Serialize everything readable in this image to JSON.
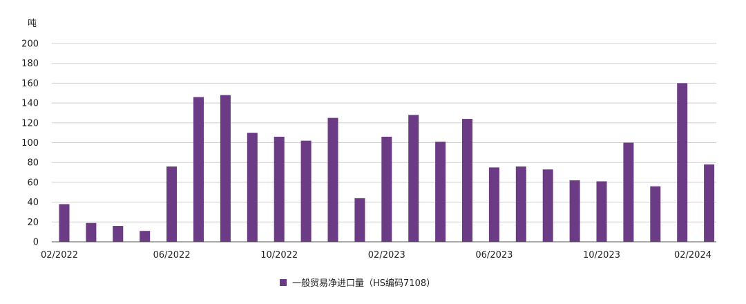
{
  "chart_data": {
    "type": "bar",
    "unit_label": "吨",
    "categories": [
      "02/2022",
      "03/2022",
      "04/2022",
      "05/2022",
      "06/2022",
      "07/2022",
      "08/2022",
      "09/2022",
      "10/2022",
      "11/2022",
      "12/2022",
      "01/2023",
      "02/2023",
      "03/2023",
      "04/2023",
      "05/2023",
      "06/2023",
      "07/2023",
      "08/2023",
      "09/2023",
      "10/2023",
      "11/2023",
      "12/2023",
      "01/2024",
      "02/2024"
    ],
    "xtick_labels": [
      "02/2022",
      "06/2022",
      "10/2022",
      "02/2023",
      "06/2023",
      "10/2023",
      "02/2024"
    ],
    "series": [
      {
        "name": "一般贸易净进口量（HS编码7108）",
        "color": "#6b3b86",
        "values": [
          38,
          19,
          16,
          11,
          76,
          146,
          148,
          110,
          106,
          102,
          125,
          44,
          106,
          128,
          101,
          124,
          75,
          76,
          73,
          62,
          61,
          100,
          56,
          160,
          78
        ]
      }
    ],
    "ylim": [
      0,
      200
    ],
    "yticks": [
      0,
      20,
      40,
      60,
      80,
      100,
      120,
      140,
      160,
      180,
      200
    ],
    "grid": true,
    "legend_position": "bottom"
  }
}
